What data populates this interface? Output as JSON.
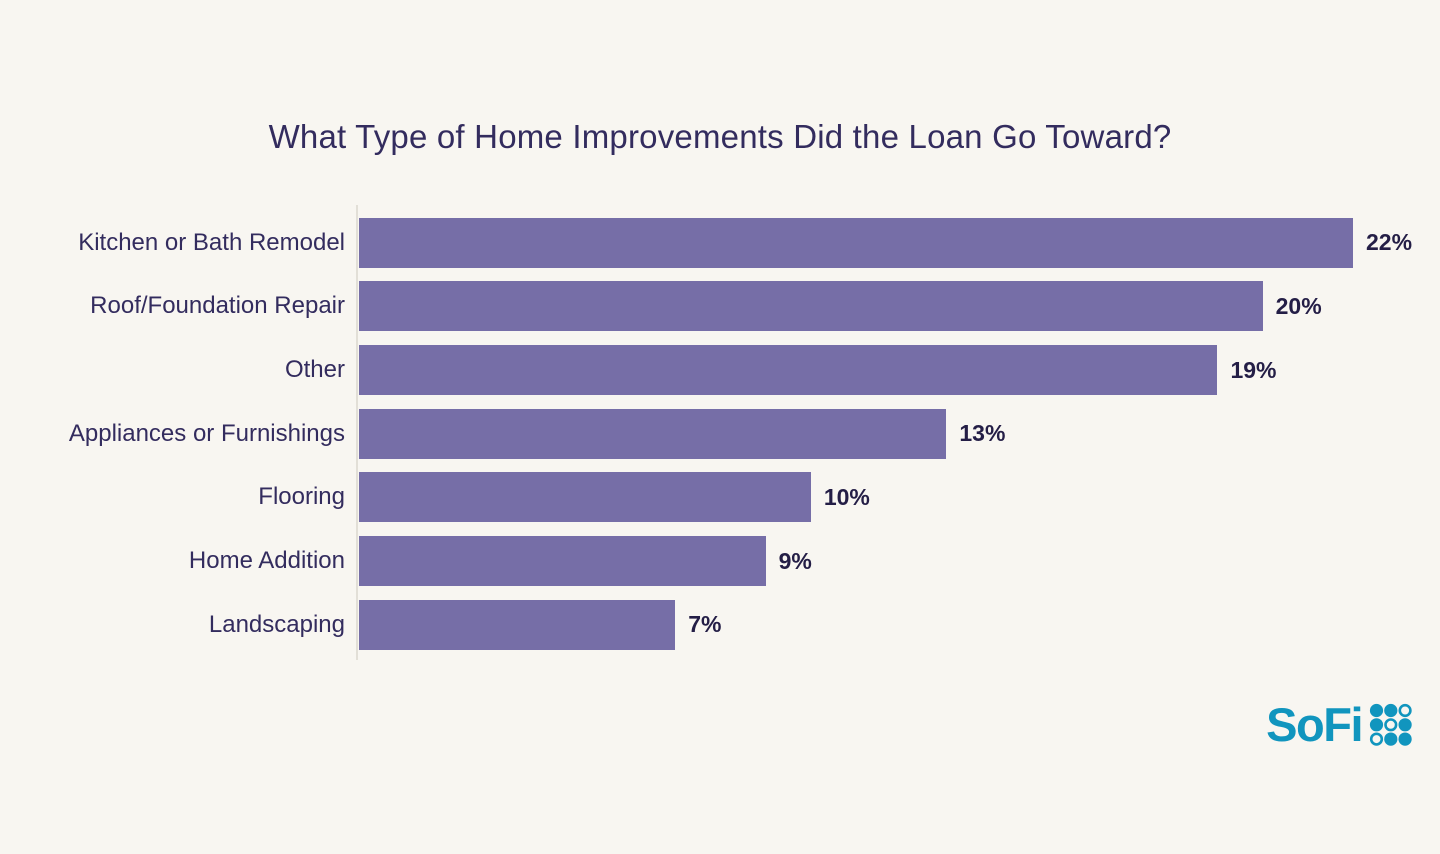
{
  "page": {
    "background_color": "#F8F6F1"
  },
  "title": {
    "text": "What Type of Home Improvements Did the Loan Go Toward?",
    "color": "#332C5E"
  },
  "chart_data": {
    "type": "bar",
    "orientation": "horizontal",
    "title": "What Type of Home Improvements Did the Loan Go Toward?",
    "categories": [
      "Kitchen or Bath Remodel",
      "Roof/Foundation Repair",
      "Other",
      "Appliances or Furnishings",
      "Flooring",
      "Home Addition",
      "Landscaping"
    ],
    "values": [
      22,
      20,
      19,
      13,
      10,
      9,
      7
    ],
    "value_labels": [
      "22%",
      "20%",
      "19%",
      "13%",
      "10%",
      "9%",
      "7%"
    ],
    "unit": "%",
    "xlim": [
      0,
      22
    ],
    "grid": false,
    "legend": false,
    "bar_color": "#766EA7",
    "category_label_color": "#332C5E",
    "value_label_color": "#241E46",
    "axis_line_color": "#E2DFD7"
  },
  "logo": {
    "wordmark": "SoFi",
    "color": "#1195BE",
    "dots_icon": "sofi-dots-grid",
    "dot_pattern": [
      [
        "filled",
        "filled",
        "outline"
      ],
      [
        "filled",
        "outline",
        "filled"
      ],
      [
        "outline",
        "filled",
        "filled"
      ]
    ]
  }
}
